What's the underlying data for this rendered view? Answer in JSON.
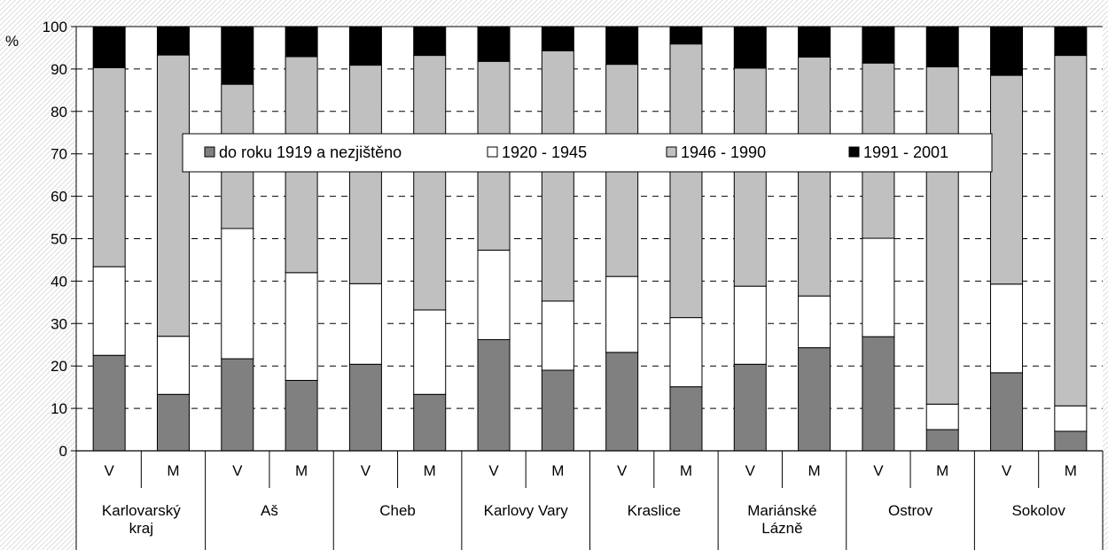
{
  "chart_data": {
    "type": "bar",
    "stacked": true,
    "percent": true,
    "title": "",
    "xlabel": "",
    "ylabel": "%",
    "ylim": [
      0,
      100
    ],
    "yticks": [
      0,
      10,
      20,
      30,
      40,
      50,
      60,
      70,
      80,
      90,
      100
    ],
    "grid": true,
    "legend_position": "upper-middle",
    "sub_categories": [
      "V",
      "M",
      "V",
      "M",
      "V",
      "M",
      "V",
      "M",
      "V",
      "M",
      "V",
      "M",
      "V",
      "M",
      "V",
      "M"
    ],
    "groups": [
      {
        "lines": [
          "Karlovarský",
          "kraj"
        ]
      },
      {
        "lines": [
          "Aš"
        ]
      },
      {
        "lines": [
          "Cheb"
        ]
      },
      {
        "lines": [
          "Karlovy Vary"
        ]
      },
      {
        "lines": [
          "Kraslice"
        ]
      },
      {
        "lines": [
          "Mariánské",
          "Lázně"
        ]
      },
      {
        "lines": [
          "Ostrov"
        ]
      },
      {
        "lines": [
          "Sokolov"
        ]
      }
    ],
    "series": [
      {
        "name": "do roku 1919 a nezjištěno",
        "color": "#808080",
        "values": [
          22.5,
          13.3,
          21.7,
          16.6,
          20.4,
          13.3,
          26.2,
          19.0,
          23.2,
          15.1,
          20.4,
          24.3,
          26.9,
          5.0,
          18.4,
          4.6
        ]
      },
      {
        "name": "1920 - 1945",
        "color": "#ffffff",
        "values": [
          20.9,
          13.7,
          30.7,
          25.4,
          19.0,
          19.9,
          21.1,
          16.3,
          17.9,
          16.3,
          18.4,
          12.2,
          23.2,
          6.0,
          20.9,
          6.0
        ]
      },
      {
        "name": "1946 - 1990",
        "color": "#c0c0c0",
        "values": [
          46.9,
          66.3,
          34.0,
          50.9,
          51.5,
          60.0,
          44.5,
          59.0,
          50.0,
          64.5,
          51.4,
          56.3,
          41.3,
          79.5,
          49.2,
          82.6
        ]
      },
      {
        "name": "1991 - 2001",
        "color": "#000000",
        "values": [
          9.7,
          6.7,
          13.6,
          7.1,
          9.1,
          6.8,
          8.2,
          5.7,
          8.9,
          4.1,
          9.8,
          7.2,
          8.6,
          9.5,
          11.5,
          6.8
        ]
      }
    ]
  }
}
